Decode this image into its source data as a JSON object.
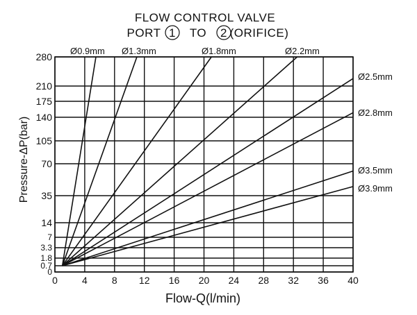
{
  "chart_data": {
    "type": "line",
    "title_line1": "FLOW CONTROL VALVE",
    "title_line2_prefix": "PORT",
    "title_port_a": "1",
    "title_to": "TO",
    "title_port_b": "2",
    "title_line2_suffix": "(ORIFICE)",
    "xlabel": "Flow-Q(l/min)",
    "ylabel": "Pressure-ΔP(bar)",
    "x_ticks": [
      0,
      4,
      8,
      12,
      16,
      20,
      24,
      28,
      32,
      36,
      40
    ],
    "xlim": [
      0,
      40
    ],
    "y_ticks": [
      0,
      0.7,
      1.8,
      3.3,
      7,
      14,
      35,
      70,
      105,
      140,
      175,
      210,
      280
    ],
    "grid": true,
    "series": [
      {
        "name": "Ø0.9mm",
        "x": [
          1,
          5.5
        ],
        "y": [
          0.7,
          280
        ]
      },
      {
        "name": "Ø1.3mm",
        "x": [
          1,
          11
        ],
        "y": [
          0.7,
          280
        ]
      },
      {
        "name": "Ø1.8mm",
        "x": [
          1,
          21
        ],
        "y": [
          0.7,
          280
        ]
      },
      {
        "name": "Ø2.2mm",
        "x": [
          1,
          32.5
        ],
        "y": [
          0.7,
          280
        ]
      },
      {
        "name": "Ø2.5mm",
        "x": [
          1,
          40
        ],
        "y": [
          0.7,
          228
        ]
      },
      {
        "name": "Ø2.8mm",
        "x": [
          1,
          40
        ],
        "y": [
          0.7,
          150
        ]
      },
      {
        "name": "Ø3.5mm",
        "x": [
          1,
          40
        ],
        "y": [
          0.7,
          62
        ]
      },
      {
        "name": "Ø3.9mm",
        "x": [
          1,
          40
        ],
        "y": [
          0.7,
          45
        ]
      }
    ]
  }
}
